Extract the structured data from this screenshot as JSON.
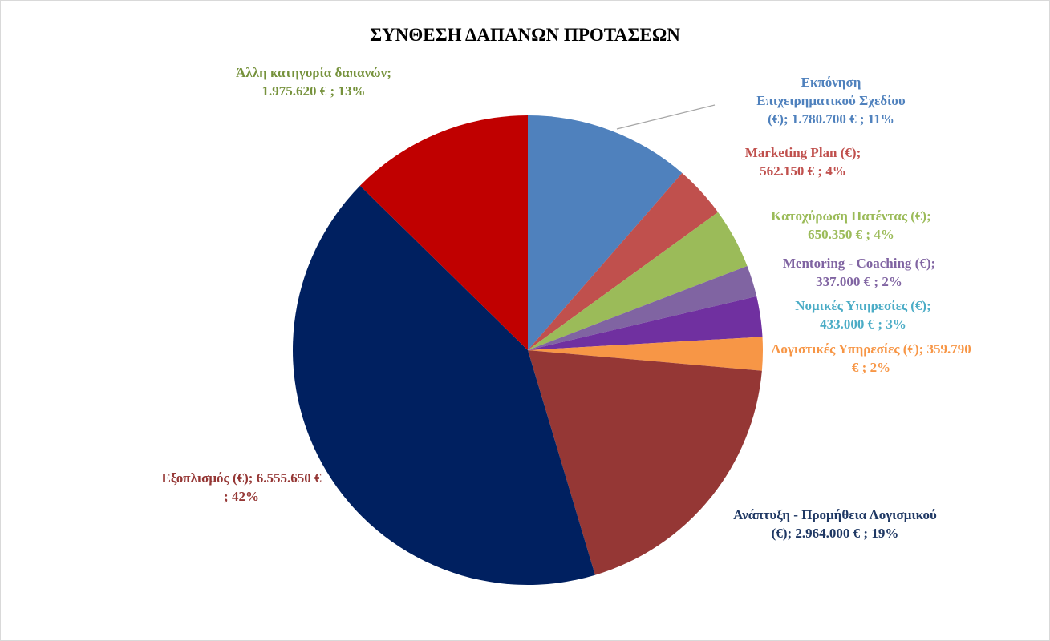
{
  "chart_data": {
    "type": "pie",
    "title": "ΣΥΝΘΕΣΗ ΔΑΠΑΝΩΝ ΠΡΟΤΑΣΕΩΝ",
    "values": [
      1780700,
      562150,
      650350,
      337000,
      433000,
      359790,
      2964000,
      6555650,
      1975620
    ],
    "value_labels": [
      "Εκπόνηση Επιχειρηματικού Σχεδίου (€);  1.780.700 € ; 11%",
      "Marketing Plan (€);  562.150 € ; 4%",
      "Κατοχύρωση Πατέντας (€);  650.350 € ; 4%",
      "Mentoring - Coaching (€);  337.000 € ; 2%",
      "Νομικές Υπηρεσίες (€);  433.000 € ; 3%",
      "Λογιστικές Υπηρεσίες (€);  359.790 € ; 2%",
      "Ανάπτυξη - Προμήθεια Λογισμικού (€);  2.964.000 € ; 19%",
      "Εξοπλισμός (€);  6.555.650 € ; 42%",
      "Άλλη κατηγορία δαπανών;  1.975.620 € ; 13%"
    ],
    "colors": [
      "#4f81bd",
      "#c0504d",
      "#9bbb59",
      "#8064a2",
      "#7030a0",
      "#f79646",
      "#953735",
      "#002060",
      "#c00000"
    ],
    "label_colors": [
      "#4f81bd",
      "#c0504d",
      "#9bbb59",
      "#8064a2",
      "#4bacc6",
      "#f79646",
      "#1f3864",
      "#953735",
      "#76923c"
    ]
  }
}
